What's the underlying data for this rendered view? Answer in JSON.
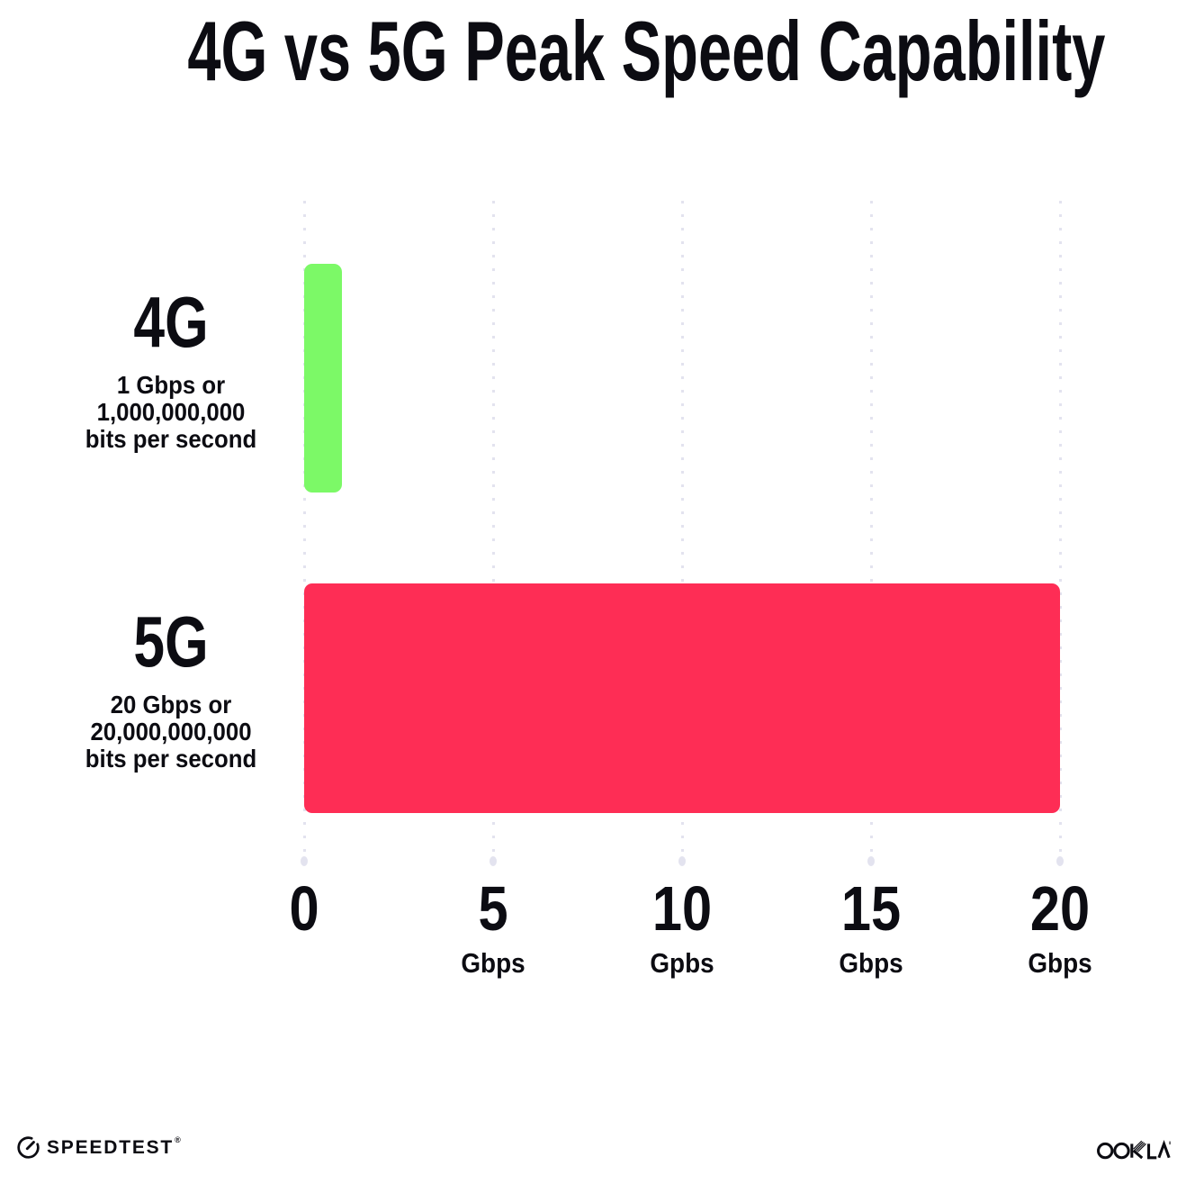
{
  "title": "4G vs 5G Peak Speed Capability",
  "chart_data": {
    "type": "bar",
    "orientation": "horizontal",
    "title": "4G vs 5G Peak Speed Capability",
    "categories": [
      "4G",
      "5G"
    ],
    "values": [
      1,
      20
    ],
    "value_unit": "Gbps",
    "xlim": [
      0,
      20
    ],
    "grid": "vertical dotted gridlines at 0, 5, 10, 15, 20",
    "legend": "none",
    "x_ticks": [
      {
        "value": "0",
        "unit": ""
      },
      {
        "value": "5",
        "unit": "Gbps"
      },
      {
        "value": "10",
        "unit": "Gpbs"
      },
      {
        "value": "15",
        "unit": "Gbps"
      },
      {
        "value": "20",
        "unit": "Gbps"
      }
    ],
    "bars": [
      {
        "label": "4G",
        "value": 1,
        "color": "#7CF967",
        "sublabel_lines": [
          "1 Gbps or",
          "1,000,000,000",
          "bits per second"
        ]
      },
      {
        "label": "5G",
        "value": 20,
        "color": "#FE2D55",
        "sublabel_lines": [
          "20 Gbps or",
          "20,000,000,000",
          "bits per second"
        ]
      }
    ]
  },
  "colors": {
    "background": "#FFFFFF",
    "text": "#0C0C12",
    "gridline": "#E3E3EF",
    "bar_4g": "#7CF967",
    "bar_5g": "#FE2D55"
  },
  "footer": {
    "speedtest_label": "SPEEDTEST",
    "speedtest_mark": "®",
    "ookla_label": "OOKLA",
    "icons": {
      "speedtest": "gauge-icon",
      "ookla": "ookla-wordmark"
    }
  }
}
